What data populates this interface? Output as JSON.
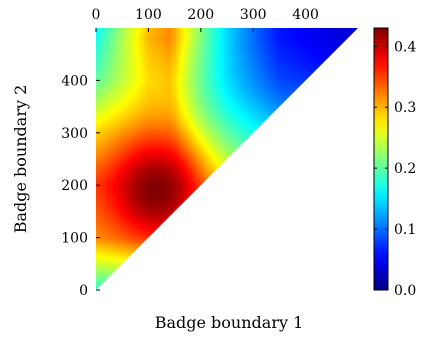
{
  "chart_data": {
    "type": "heatmap",
    "xlabel": "Badge boundary 1",
    "ylabel": "Badge boundary 2",
    "xlim": [
      0,
      500
    ],
    "ylim": [
      0,
      500
    ],
    "x_ticks": [
      "0",
      "100",
      "200",
      "300",
      "400"
    ],
    "y_ticks": [
      "0",
      "100",
      "200",
      "300",
      "400"
    ],
    "x_tick_values": [
      0,
      100,
      200,
      300,
      400
    ],
    "y_tick_values": [
      0,
      100,
      200,
      300,
      400
    ],
    "x_axis_position": "top",
    "domain": "upper triangle (boundary 2 >= boundary 1)",
    "colormap": "jet",
    "colorbar": {
      "range": [
        0.0,
        0.43
      ],
      "tick_values": [
        0.0,
        0.1,
        0.2,
        0.3,
        0.4
      ],
      "ticks": [
        "0.0",
        "0.1",
        "0.2",
        "0.3",
        "0.4"
      ],
      "placement": "right"
    },
    "peak": {
      "x": 115,
      "y": 190,
      "value": 0.43
    },
    "values_along_x_at_y480": [
      {
        "x": 0,
        "value": 0.17
      },
      {
        "x": 100,
        "value": 0.3
      },
      {
        "x": 140,
        "value": 0.32
      },
      {
        "x": 250,
        "value": 0.18
      },
      {
        "x": 350,
        "value": 0.09
      },
      {
        "x": 480,
        "value": 0.06
      }
    ],
    "values_along_y_at_x0": [
      {
        "y": 0,
        "value": 0.18
      },
      {
        "y": 100,
        "value": 0.31
      },
      {
        "y": 200,
        "value": 0.34
      },
      {
        "y": 300,
        "value": 0.28
      },
      {
        "y": 400,
        "value": 0.2
      },
      {
        "y": 500,
        "value": 0.16
      }
    ],
    "grid": false
  }
}
